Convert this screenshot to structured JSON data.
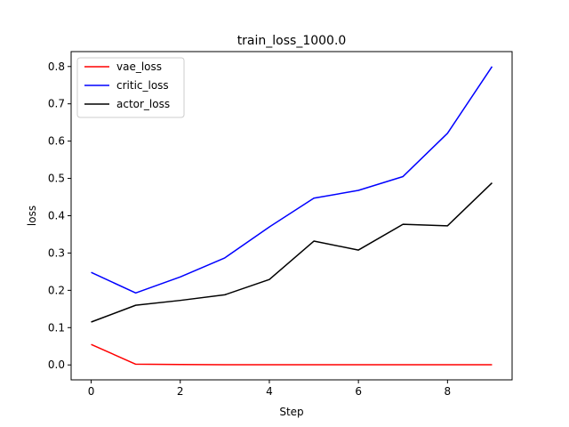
{
  "chart_data": {
    "type": "line",
    "title": "train_loss_1000.0",
    "xlabel": "Step",
    "ylabel": "loss",
    "xlim": [
      -0.45,
      9.45
    ],
    "ylim": [
      -0.04,
      0.84
    ],
    "xticks": [
      "0",
      "2",
      "4",
      "6",
      "8"
    ],
    "yticks": [
      "0.0",
      "0.1",
      "0.2",
      "0.3",
      "0.4",
      "0.5",
      "0.6",
      "0.7",
      "0.8"
    ],
    "grid": false,
    "legend_position": "upper-left",
    "x": [
      0,
      1,
      2,
      3,
      4,
      5,
      6,
      7,
      8,
      9
    ],
    "series": [
      {
        "name": "vae_loss",
        "color": "#ff0000",
        "values": [
          0.055,
          0.002,
          0.001,
          0.0005,
          0.0005,
          0.0005,
          0.0005,
          0.0005,
          0.0005,
          0.0005
        ]
      },
      {
        "name": "critic_loss",
        "color": "#0000ff",
        "values": [
          0.248,
          0.193,
          0.236,
          0.287,
          0.37,
          0.447,
          0.468,
          0.505,
          0.621,
          0.8
        ]
      },
      {
        "name": "actor_loss",
        "color": "#000000",
        "values": [
          0.115,
          0.16,
          0.173,
          0.188,
          0.229,
          0.332,
          0.308,
          0.377,
          0.373,
          0.488
        ]
      }
    ]
  }
}
